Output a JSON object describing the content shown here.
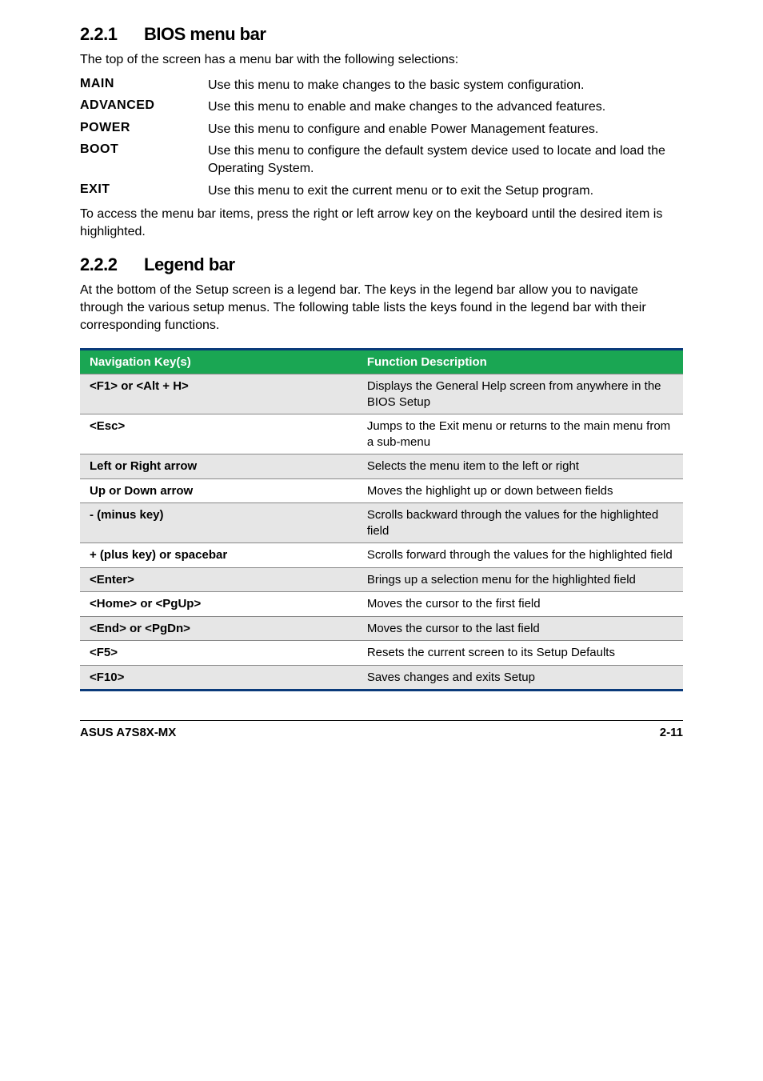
{
  "colors": {
    "table_border_accent": "#0a3a7a",
    "table_header_bg": "#1aa653",
    "row_alt_bg": "#e6e6e6",
    "row_bg": "#ffffff",
    "cell_border": "#888888",
    "text": "#000000"
  },
  "sections": {
    "bios": {
      "number": "2.2.1",
      "title": "BIOS menu bar",
      "intro": "The top of the screen has a menu bar with the following selections:",
      "items": [
        {
          "term": "MAIN",
          "desc": "Use this menu to make changes to the basic system configuration."
        },
        {
          "term": "ADVANCED",
          "desc": "Use this menu to enable and make changes to the advanced features."
        },
        {
          "term": "POWER",
          "desc": "Use this menu to configure and enable Power Management features."
        },
        {
          "term": "BOOT",
          "desc": "Use this menu to configure the default system device used to locate and load the Operating System."
        },
        {
          "term": "EXIT",
          "desc": "Use this menu to exit the current menu or to exit the Setup program."
        }
      ],
      "outro": "To access the menu bar items, press the right or left arrow key on the keyboard until the desired item is highlighted."
    },
    "legend": {
      "number": "2.2.2",
      "title": "Legend bar",
      "intro": "At the bottom of the Setup screen is a legend bar. The keys in the legend bar allow you to navigate through the various setup menus. The following table lists the keys found in the legend bar with their corresponding functions.",
      "headers": {
        "key": "Navigation Key(s)",
        "desc": "Function Description"
      },
      "rows": [
        {
          "key": "<F1> or <Alt + H>",
          "desc": "Displays the General Help screen from anywhere in the BIOS Setup"
        },
        {
          "key": "<Esc>",
          "desc": "Jumps to the Exit menu or returns to the main menu from a sub-menu"
        },
        {
          "key": "Left or Right arrow",
          "desc": "Selects the menu item to the left or right"
        },
        {
          "key": "Up or Down arrow",
          "desc": "Moves the highlight up or down between fields"
        },
        {
          "key": "- (minus key)",
          "desc": "Scrolls backward through the values for the highlighted field"
        },
        {
          "key": "+ (plus key) or spacebar",
          "desc": "Scrolls forward through the values for the highlighted field"
        },
        {
          "key": "<Enter>",
          "desc": "Brings up a selection menu for the highlighted field"
        },
        {
          "key": "<Home> or <PgUp>",
          "desc": "Moves the cursor to the first field"
        },
        {
          "key": "<End> or <PgDn>",
          "desc": "Moves the cursor to the last field"
        },
        {
          "key": " <F5>",
          "desc": "Resets the current screen to its Setup Defaults"
        },
        {
          "key": "<F10>",
          "desc": "Saves changes and exits Setup"
        }
      ]
    }
  },
  "footer": {
    "left": "ASUS A7S8X-MX",
    "right": "2-11"
  }
}
